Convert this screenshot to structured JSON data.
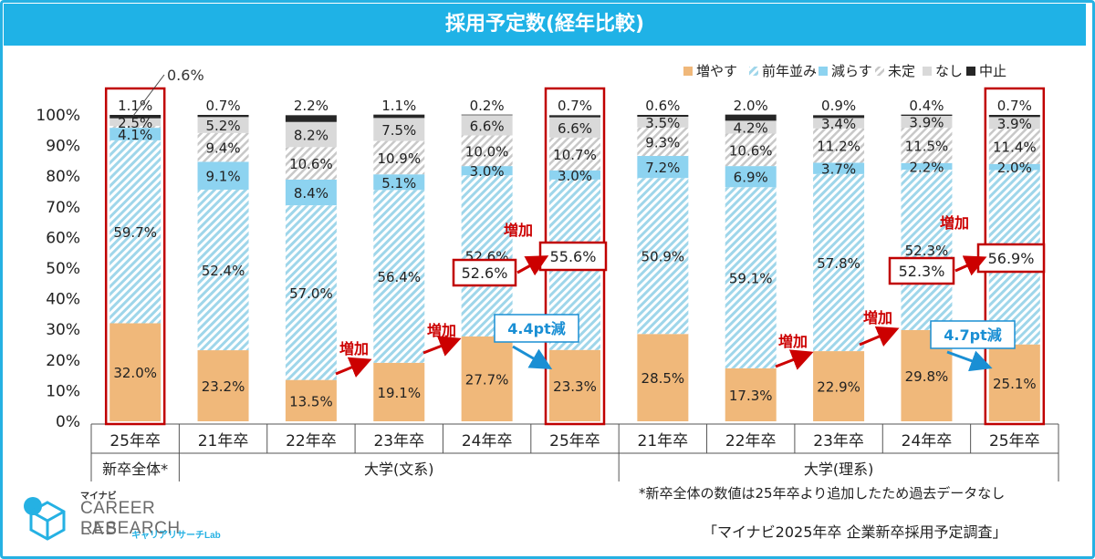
{
  "title": "採用予定数(経年比較)",
  "chart_data": {
    "type": "bar",
    "stacked": true,
    "percent": true,
    "categories": [
      "25年卒",
      "21年卒",
      "22年卒",
      "23年卒",
      "24年卒",
      "25年卒",
      "21年卒",
      "22年卒",
      "23年卒",
      "24年卒",
      "25年卒"
    ],
    "groups": [
      {
        "label": "新卒全体*",
        "from": 0,
        "to": 0
      },
      {
        "label": "大学(文系)",
        "from": 1,
        "to": 5
      },
      {
        "label": "大学(理系)",
        "from": 6,
        "to": 10
      }
    ],
    "series": [
      {
        "name": "増やす",
        "color": "#f0b87a",
        "pattern": "solid",
        "values": [
          32.0,
          23.2,
          13.5,
          19.1,
          27.7,
          23.3,
          28.5,
          17.3,
          22.9,
          29.8,
          25.1
        ],
        "labels": [
          "32.0%",
          "23.2%",
          "13.5%",
          "19.1%",
          "27.7%",
          "23.3%",
          "28.5%",
          "17.3%",
          "22.9%",
          "29.8%",
          "25.1%"
        ]
      },
      {
        "name": "前年並み",
        "color": "#9fd6ea",
        "pattern": "hatch",
        "values": [
          59.7,
          52.4,
          57.0,
          56.4,
          52.6,
          55.6,
          50.9,
          59.1,
          57.8,
          52.3,
          56.9
        ],
        "labels": [
          "59.7%",
          "52.4%",
          "57.0%",
          "56.4%",
          "52.6%",
          "55.6%",
          "50.9%",
          "59.1%",
          "57.8%",
          "52.3%",
          "56.9%"
        ]
      },
      {
        "name": "減らす",
        "color": "#8dd3f0",
        "pattern": "solid",
        "values": [
          4.1,
          9.1,
          8.4,
          5.1,
          3.0,
          3.0,
          7.2,
          6.9,
          3.7,
          2.2,
          2.0
        ],
        "labels": [
          "4.1%",
          "9.1%",
          "8.4%",
          "5.1%",
          "3.0%",
          "3.0%",
          "7.2%",
          "6.9%",
          "3.7%",
          "2.2%",
          "2.0%"
        ]
      },
      {
        "name": "未定",
        "color": "#d0d0d0",
        "pattern": "hatch",
        "values": [
          0.6,
          9.4,
          10.6,
          10.9,
          10.0,
          10.7,
          9.3,
          10.6,
          11.2,
          11.5,
          11.4
        ],
        "labels": [
          "0.6%",
          "9.4%",
          "10.6%",
          "10.9%",
          "10.0%",
          "10.7%",
          "9.3%",
          "10.6%",
          "11.2%",
          "11.5%",
          "11.4%"
        ]
      },
      {
        "name": "なし",
        "color": "#d9d9d9",
        "pattern": "solid",
        "values": [
          2.5,
          5.2,
          8.2,
          7.5,
          6.6,
          6.6,
          3.5,
          4.2,
          3.4,
          3.9,
          3.9
        ],
        "labels": [
          "2.5%",
          "5.2%",
          "8.2%",
          "7.5%",
          "6.6%",
          "6.6%",
          "3.5%",
          "4.2%",
          "3.4%",
          "3.9%",
          "3.9%"
        ]
      },
      {
        "name": "中止",
        "color": "#262626",
        "pattern": "solid",
        "values": [
          1.1,
          0.7,
          2.2,
          1.1,
          0.2,
          0.7,
          0.6,
          2.0,
          0.9,
          0.4,
          0.7
        ],
        "labels": [
          "1.1%",
          "0.7%",
          "2.2%",
          "1.1%",
          "0.2%",
          "0.7%",
          "0.6%",
          "2.0%",
          "0.9%",
          "0.4%",
          "0.7%"
        ]
      }
    ],
    "y_ticks": [
      "0%",
      "10%",
      "20%",
      "30%",
      "40%",
      "50%",
      "60%",
      "70%",
      "80%",
      "90%",
      "100%"
    ],
    "ylim": [
      0,
      100
    ],
    "legend_position": "top-right",
    "highlighted_bars": [
      0,
      5,
      10
    ],
    "annotations": [
      {
        "text": "増加",
        "color": "#cc0000"
      },
      {
        "text": "増加",
        "color": "#cc0000"
      },
      {
        "text": "増加",
        "color": "#cc0000"
      },
      {
        "text": "増加",
        "color": "#cc0000"
      },
      {
        "text": "増加",
        "color": "#cc0000"
      },
      {
        "text": "増加",
        "color": "#cc0000"
      },
      {
        "text": "4.4pt減",
        "color": "#1a8fd4"
      },
      {
        "text": "4.7pt減",
        "color": "#1a8fd4"
      },
      {
        "text": "52.6%",
        "color": "#333333"
      },
      {
        "text": "55.6%",
        "color": "#333333"
      },
      {
        "text": "52.3%",
        "color": "#333333"
      },
      {
        "text": "56.9%",
        "color": "#333333"
      },
      {
        "text": "0.6%",
        "color": "#333333"
      }
    ]
  },
  "footnote": "*新卒全体の数値は25年卒より追加したため過去データなし",
  "source": "「マイナビ2025年卒 企業新卒採用予定調査」",
  "logo": {
    "top": "マイナビ",
    "line1": "CAREER RESEARCH",
    "line2": "LAB",
    "sub": "キャリアリサーチLab"
  }
}
